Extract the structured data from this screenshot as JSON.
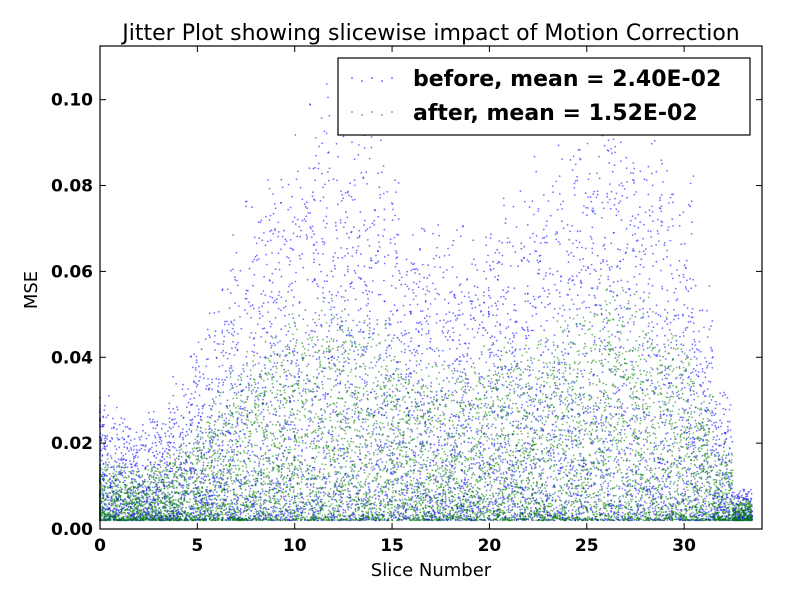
{
  "chart_data": {
    "type": "scatter",
    "title": "Jitter Plot showing slicewise impact of Motion Correction",
    "xlabel": "Slice Number",
    "ylabel": "MSE",
    "xlim": [
      0,
      34
    ],
    "ylim": [
      0,
      0.1125
    ],
    "x_ticks": [
      0,
      5,
      10,
      15,
      20,
      25,
      30
    ],
    "x_tick_labels": [
      "0",
      "5",
      "10",
      "15",
      "20",
      "25",
      "30"
    ],
    "y_ticks": [
      0.0,
      0.02,
      0.04,
      0.06,
      0.08,
      0.1
    ],
    "y_tick_labels": [
      "0.00",
      "0.02",
      "0.04",
      "0.06",
      "0.08",
      "0.10"
    ],
    "grid": false,
    "legend_position": "top-right",
    "series": [
      {
        "name": "before, mean = 2.40E-02",
        "color": "#0000ff",
        "mean": 0.024,
        "points_per_slice": 220,
        "envelope": {
          "slices": [
            0,
            2,
            4,
            6,
            8,
            10,
            12,
            14,
            16,
            18,
            20,
            22,
            24,
            26,
            28,
            30,
            31,
            32,
            33
          ],
          "upper": [
            0.025,
            0.018,
            0.028,
            0.045,
            0.065,
            0.075,
            0.085,
            0.085,
            0.06,
            0.058,
            0.06,
            0.07,
            0.075,
            0.09,
            0.085,
            0.065,
            0.045,
            0.025,
            0.006
          ]
        }
      },
      {
        "name": "after, mean = 1.52E-02",
        "color": "#008000",
        "mean": 0.0152,
        "points_per_slice": 220,
        "envelope": {
          "slices": [
            0,
            2,
            4,
            6,
            8,
            10,
            12,
            14,
            16,
            18,
            20,
            22,
            24,
            26,
            28,
            30,
            31,
            32,
            33
          ],
          "upper": [
            0.012,
            0.01,
            0.015,
            0.025,
            0.035,
            0.04,
            0.045,
            0.04,
            0.035,
            0.03,
            0.035,
            0.035,
            0.04,
            0.05,
            0.045,
            0.035,
            0.025,
            0.015,
            0.004
          ]
        }
      }
    ]
  }
}
